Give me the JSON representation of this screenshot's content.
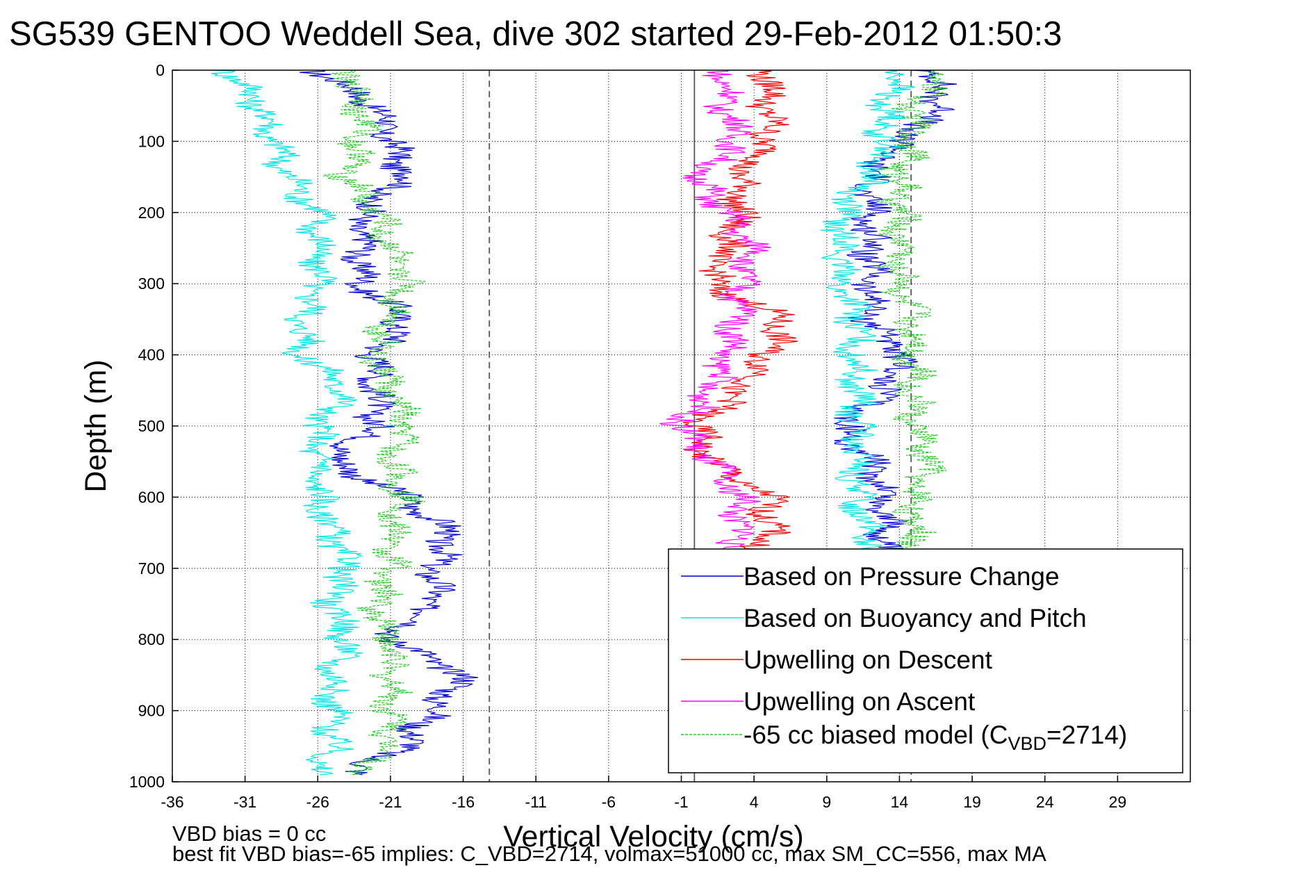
{
  "chart_data": {
    "type": "line",
    "title": "SG539 GENTOO Weddell Sea, dive 302 started 29-Feb-2012 01:50:3",
    "xlabel": "Vertical Velocity (cm/s)",
    "ylabel": "Depth (m)",
    "xlim": [
      -36,
      34
    ],
    "ylim": [
      1000,
      0
    ],
    "y_reversed": true,
    "xticks": [
      "-36",
      "-31",
      "-26",
      "-21",
      "-16",
      "-11",
      "-6",
      "-1",
      "4",
      "9",
      "14",
      "19",
      "24",
      "29"
    ],
    "yticks": [
      "0",
      "100",
      "200",
      "300",
      "400",
      "500",
      "600",
      "700",
      "800",
      "900",
      "1000"
    ],
    "grid": true,
    "legend_position": "bottom-right",
    "reference_lines": [
      {
        "x": -14.2,
        "style": "dashed",
        "color": "#555555"
      },
      {
        "x": -0.1,
        "style": "solid",
        "color": "#555555"
      },
      {
        "x": 14.8,
        "style": "dashed",
        "color": "#555555"
      }
    ],
    "series": [
      {
        "name": "Based on Pressure Change",
        "color": "#0000cc",
        "style": "solid",
        "descent": {
          "depth": [
            0,
            50,
            100,
            150,
            200,
            250,
            300,
            350,
            400,
            450,
            500,
            550,
            600,
            650,
            700,
            750,
            800,
            850,
            900,
            950,
            990
          ],
          "velocity": [
            -26,
            -22,
            -21,
            -20,
            -23,
            -23,
            -23,
            -20,
            -22,
            -22,
            -22,
            -25,
            -20,
            -17,
            -18,
            -18,
            -21,
            -16,
            -18,
            -20,
            -24
          ]
        },
        "ascent": {
          "depth": [
            0,
            50,
            100,
            150,
            200,
            250,
            300,
            350,
            400,
            450,
            500,
            550,
            600,
            650,
            700
          ],
          "velocity": [
            16,
            17,
            14,
            12,
            12,
            12,
            12,
            12,
            14,
            13,
            10,
            12,
            13,
            13,
            13
          ]
        }
      },
      {
        "name": "Based on Buoyancy and Pitch",
        "color": "#00e5e5",
        "style": "solid",
        "descent": {
          "depth": [
            0,
            50,
            100,
            150,
            200,
            250,
            300,
            350,
            400,
            450,
            500,
            550,
            600,
            650,
            700,
            750,
            800,
            850,
            900,
            950,
            990
          ],
          "velocity": [
            -32,
            -30,
            -29,
            -28,
            -26,
            -26,
            -26,
            -27,
            -27,
            -24,
            -26,
            -26,
            -26,
            -25,
            -24,
            -25,
            -24,
            -25,
            -25,
            -25,
            -26
          ]
        },
        "ascent": {
          "depth": [
            0,
            50,
            100,
            150,
            200,
            250,
            300,
            350,
            400,
            450,
            500,
            550,
            600,
            650,
            700
          ],
          "velocity": [
            14,
            13,
            13,
            12,
            10,
            10,
            10,
            11,
            11,
            11,
            11,
            11,
            11,
            12,
            12
          ]
        }
      },
      {
        "name": "Upwelling on Descent",
        "color": "#ee0000",
        "style": "solid",
        "depth": [
          0,
          50,
          100,
          150,
          200,
          250,
          300,
          350,
          400,
          450,
          500,
          550,
          600,
          650,
          700
        ],
        "velocity": [
          5,
          5,
          5,
          3,
          3,
          2,
          1,
          6,
          5,
          3,
          0,
          1,
          5,
          5,
          4
        ]
      },
      {
        "name": "Upwelling on Ascent",
        "color": "#ff00ff",
        "style": "solid",
        "depth": [
          0,
          50,
          100,
          150,
          200,
          250,
          300,
          350,
          400,
          450,
          500,
          550,
          600,
          650,
          700
        ],
        "velocity": [
          2,
          2,
          3,
          0,
          2,
          4,
          3,
          3,
          2,
          1,
          -1,
          1,
          3,
          3,
          2
        ]
      },
      {
        "name": "-65 cc biased model (C_VBD=2714)",
        "color": "#22cc22",
        "style": "dashed",
        "descent": {
          "depth": [
            0,
            50,
            100,
            150,
            200,
            250,
            300,
            350,
            400,
            450,
            500,
            550,
            600,
            650,
            700,
            750,
            800,
            850,
            900,
            950,
            990
          ],
          "velocity": [
            -24,
            -23,
            -23,
            -24,
            -22,
            -21,
            -20,
            -21,
            -22,
            -21,
            -20,
            -21,
            -20,
            -21,
            -21,
            -22,
            -21,
            -21,
            -21,
            -21,
            -23
          ]
        },
        "ascent": {
          "depth": [
            0,
            50,
            100,
            150,
            200,
            250,
            300,
            350,
            400,
            450,
            500,
            550,
            600,
            650,
            700
          ],
          "velocity": [
            17,
            15,
            15,
            14,
            14,
            14,
            14,
            15,
            15,
            15,
            15,
            16,
            15,
            15,
            15
          ]
        }
      }
    ]
  },
  "legend": {
    "entries": [
      "Based on Pressure Change",
      "Based on Buoyancy and Pitch",
      "Upwelling on Descent",
      "Upwelling on Ascent"
    ],
    "last_entry_prefix": "-65 cc biased model (C",
    "last_entry_sub": "VBD",
    "last_entry_suffix": "=2714)"
  },
  "footnotes": {
    "line1": "VBD bias = 0 cc",
    "line2": "best fit VBD bias=-65 implies: C_VBD=2714, volmax=51000 cc, max SM_CC=556, max MA"
  }
}
